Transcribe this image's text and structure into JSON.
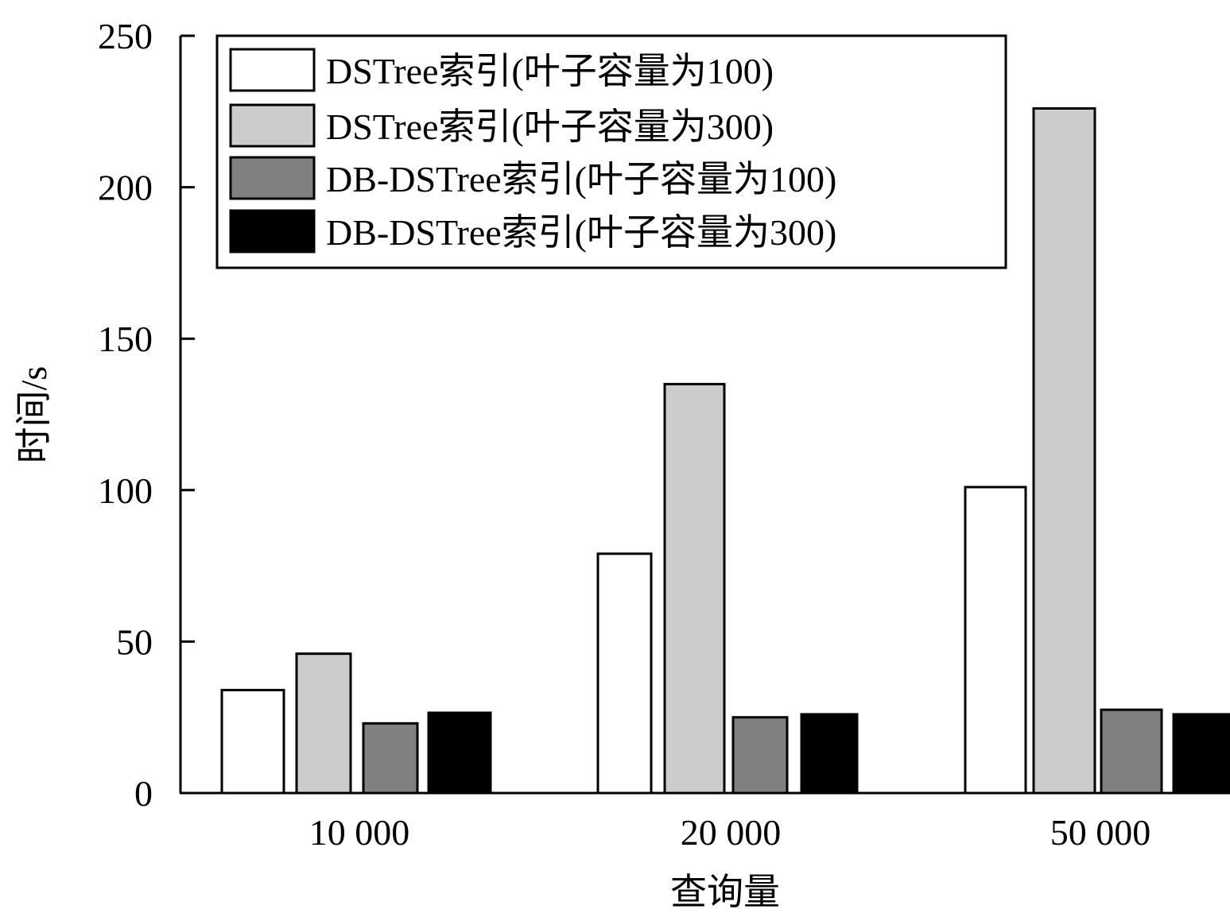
{
  "chart_data": {
    "type": "bar",
    "title": "",
    "xlabel": "查询量",
    "ylabel": "时间/s",
    "categories": [
      "10 000",
      "20 000",
      "50 000"
    ],
    "ylim": [
      0,
      250
    ],
    "yticks": [
      "0",
      "50",
      "100",
      "150",
      "200",
      "250"
    ],
    "grid": false,
    "legend_position": "top-left",
    "series": [
      {
        "name": "DSTree索引(叶子容量为100)",
        "color": "#ffffff",
        "values": [
          34,
          79,
          101
        ]
      },
      {
        "name": "DSTree索引(叶子容量为300)",
        "color": "#cccccc",
        "values": [
          46,
          135,
          226
        ]
      },
      {
        "name": "DB-DSTree索引(叶子容量为100)",
        "color": "#808080",
        "values": [
          23,
          25,
          27.5
        ]
      },
      {
        "name": "DB-DSTree索引(叶子容量为300)",
        "color": "#000000",
        "values": [
          26.5,
          26,
          26
        ]
      }
    ]
  }
}
